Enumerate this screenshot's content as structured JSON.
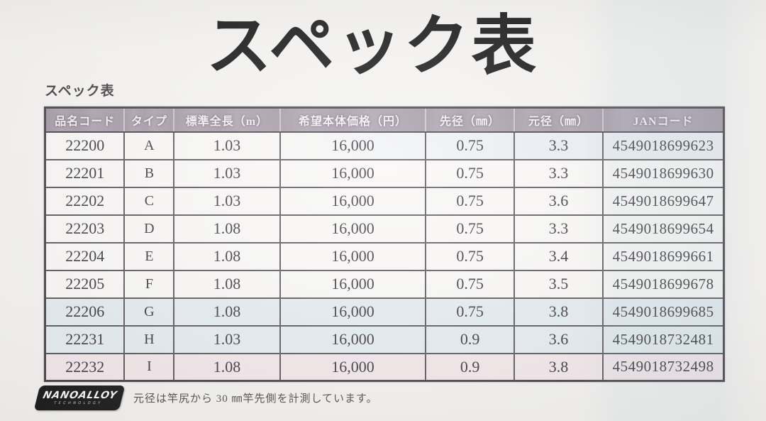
{
  "page": {
    "title": "スペック表",
    "section_label": "スペック表"
  },
  "table": {
    "columns": [
      "品名コード",
      "タイプ",
      "標準全長（m）",
      "希望本体価格（円）",
      "先径（㎜）",
      "元径（㎜）",
      "JANコード"
    ],
    "rows": [
      [
        "22200",
        "A",
        "1.03",
        "16,000",
        "0.75",
        "3.3",
        "4549018699623"
      ],
      [
        "22201",
        "B",
        "1.03",
        "16,000",
        "0.75",
        "3.3",
        "4549018699630"
      ],
      [
        "22202",
        "C",
        "1.03",
        "16,000",
        "0.75",
        "3.6",
        "4549018699647"
      ],
      [
        "22203",
        "D",
        "1.08",
        "16,000",
        "0.75",
        "3.3",
        "4549018699654"
      ],
      [
        "22204",
        "E",
        "1.08",
        "16,000",
        "0.75",
        "3.4",
        "4549018699661"
      ],
      [
        "22205",
        "F",
        "1.08",
        "16,000",
        "0.75",
        "3.5",
        "4549018699678"
      ],
      [
        "22206",
        "G",
        "1.08",
        "16,000",
        "0.75",
        "3.8",
        "4549018699685"
      ],
      [
        "22231",
        "H",
        "1.03",
        "16,000",
        "0.9",
        "3.6",
        "4549018732481"
      ],
      [
        "22232",
        "I",
        "1.08",
        "16,000",
        "0.9",
        "3.8",
        "4549018732498"
      ]
    ]
  },
  "footer": {
    "logo_line1": "NANOALLOY",
    "logo_line2": "TECHNOLOGY",
    "note": "元径は竿尻から 30 ㎜竿先側を計測しています。"
  },
  "colors": {
    "header_bg": "#a99eab",
    "table_border": "#443e46",
    "text": "#36323a",
    "logo_bg": "#151515"
  }
}
